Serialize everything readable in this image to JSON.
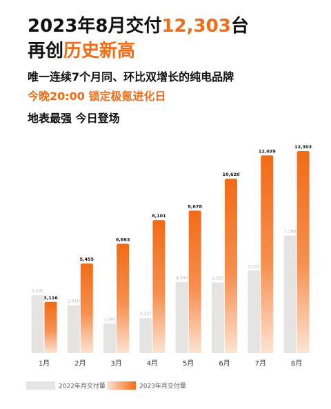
{
  "headline": {
    "line1_prefix": "2023年8月交付",
    "line1_number": "12,303",
    "line1_suffix": "台",
    "line2_prefix": "再创",
    "line2_accent": "历史新高",
    "sub1": "唯一连续7个月同、环比双增长的纯电品牌",
    "sub2": "今晚20:00 锁定极氪进化日",
    "sub3": "地表最强 今日登场"
  },
  "colors": {
    "accent": "#f26b16",
    "bar_2022": "#e6e4e2",
    "bar_2023_top": "#f26b16",
    "bar_2023_bottom": "#fde3d2"
  },
  "chart_data": {
    "type": "bar",
    "categories": [
      "1月",
      "2月",
      "3月",
      "4月",
      "5月",
      "6月",
      "7月",
      "8月"
    ],
    "series": [
      {
        "name": "2022年月交付量",
        "values": [
          3530,
          2916,
          1795,
          2137,
          4330,
          4302,
          5022,
          7166
        ],
        "labels": [
          "3,530",
          "2,916",
          "1,795",
          "2,137",
          "4,330",
          "4,302",
          "5,022",
          "7,166"
        ]
      },
      {
        "name": "2023年月交付量",
        "values": [
          3116,
          5455,
          6663,
          8101,
          8678,
          10620,
          12039,
          12303
        ],
        "labels": [
          "3,116",
          "5,455",
          "6,663",
          "8,101",
          "8,678",
          "10,620",
          "12,039",
          "12,303"
        ]
      }
    ],
    "ylim": [
      0,
      12303
    ],
    "grid": false,
    "legend": "bottom-left"
  }
}
